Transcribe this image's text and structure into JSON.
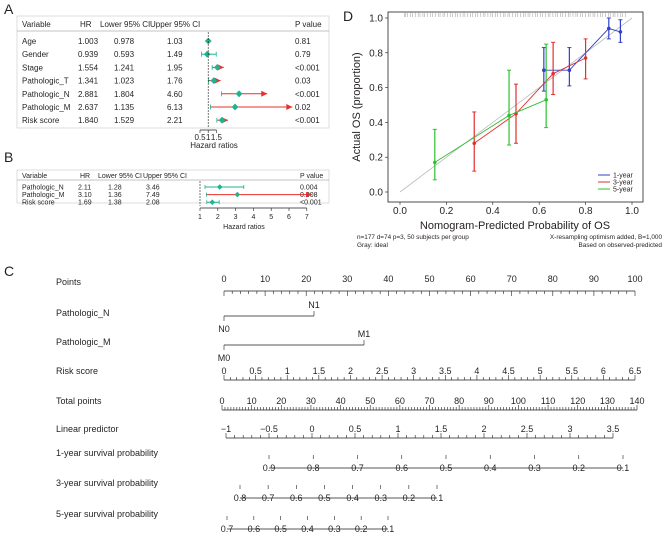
{
  "panelA": {
    "letter": "A",
    "headers": [
      "Variable",
      "HR",
      "Lower 95% CI",
      "Upper 95% CI",
      "P value"
    ],
    "rows": [
      {
        "variable": "Age",
        "hr": "1.003",
        "lower": "0.978",
        "upper": "1.03",
        "p": "0.81",
        "hrv": 1.003,
        "lo": 0.978,
        "up": 1.03,
        "arrow": false,
        "color": "#1fb38f"
      },
      {
        "variable": "Gender",
        "hr": "0.939",
        "lower": "0.593",
        "upper": "1.49",
        "p": "0.79",
        "hrv": 0.939,
        "lo": 0.593,
        "up": 1.49,
        "arrow": false,
        "color": "#1fb38f"
      },
      {
        "variable": "Stage",
        "hr": "1.554",
        "lower": "1.241",
        "upper": "1.95",
        "p": "<0.001",
        "hrv": 1.554,
        "lo": 1.241,
        "up": 1.95,
        "arrow": true,
        "color": "#1fb38f"
      },
      {
        "variable": "Pathologic_T",
        "hr": "1.341",
        "lower": "1.023",
        "upper": "1.76",
        "p": "0.03",
        "hrv": 1.341,
        "lo": 1.023,
        "up": 1.76,
        "arrow": true,
        "color": "#1fb38f"
      },
      {
        "variable": "Pathologic_N",
        "hr": "2.881",
        "lower": "1.804",
        "upper": "4.60",
        "p": "<0.001",
        "hrv": 2.881,
        "lo": 1.804,
        "up": 4.6,
        "arrow": true,
        "color": "#1fb38f"
      },
      {
        "variable": "Pathologic_M",
        "hr": "2.637",
        "lower": "1.135",
        "upper": "6.13",
        "p": "0.02",
        "hrv": 2.637,
        "lo": 1.135,
        "up": 6.13,
        "arrow": true,
        "color": "#1fb38f"
      },
      {
        "variable": "Risk score",
        "hr": "1.840",
        "lower": "1.529",
        "upper": "2.21",
        "p": "<0.001",
        "hrv": 1.84,
        "lo": 1.529,
        "up": 2.21,
        "arrow": true,
        "color": "#1fb38f"
      }
    ],
    "ticks": [
      "0.5",
      "1",
      "1.5"
    ],
    "xlabel": "Hazard ratios"
  },
  "panelB": {
    "letter": "B",
    "headers": [
      "Variable",
      "HR",
      "Lower 95% CI",
      "Upper 95% CI",
      "P value"
    ],
    "rows": [
      {
        "variable": "Pathologic_N",
        "hr": "2.11",
        "lower": "1.28",
        "upper": "3.46",
        "p": "0.004",
        "hrv": 2.11,
        "lo": 1.28,
        "up": 3.46,
        "arrow": false
      },
      {
        "variable": "Pathologic_M",
        "hr": "3.10",
        "lower": "1.36",
        "upper": "7.49",
        "p": "0.008",
        "hrv": 3.1,
        "lo": 1.36,
        "up": 7.49,
        "arrow": true
      },
      {
        "variable": "Risk score",
        "hr": "1.69",
        "lower": "1.38",
        "upper": "2.08",
        "p": "<0.001",
        "hrv": 1.69,
        "lo": 1.38,
        "up": 2.08,
        "arrow": false
      }
    ],
    "ticks": [
      "1",
      "2",
      "3",
      "4",
      "5",
      "6",
      "7"
    ],
    "xlabel": "Hazard ratios"
  },
  "panelC": {
    "letter": "C",
    "rows": [
      {
        "label": "Points",
        "ticks": [
          "0",
          "10",
          "20",
          "30",
          "40",
          "50",
          "60",
          "70",
          "80",
          "90",
          "100"
        ]
      },
      {
        "label": "Pathologic_N",
        "left": "N0",
        "right": "N1"
      },
      {
        "label": "Pathologic_M",
        "left": "M0",
        "right": "M1"
      },
      {
        "label": "Risk score",
        "ticks": [
          "0",
          "0.5",
          "1",
          "1.5",
          "2",
          "2.5",
          "3",
          "3.5",
          "4",
          "4.5",
          "5",
          "5.5",
          "6",
          "6.5"
        ]
      },
      {
        "label": "Total points",
        "ticks": [
          "0",
          "10",
          "20",
          "30",
          "40",
          "50",
          "60",
          "70",
          "80",
          "90",
          "100",
          "110",
          "120",
          "130",
          "140"
        ]
      },
      {
        "label": "Linear predictor",
        "ticks": [
          "−1",
          "−0.5",
          "0",
          "0.5",
          "1",
          "1.5",
          "2",
          "2.5",
          "3",
          "3.5"
        ]
      },
      {
        "label": "1-year survival probability",
        "ticks": [
          "0.9",
          "0.8",
          "0.7",
          "0.6",
          "0.5",
          "0.4",
          "0.3",
          "0.2",
          "0.1"
        ]
      },
      {
        "label": "3-year survival probability",
        "ticks": [
          "0.8",
          "0.7",
          "0.6",
          "0.5",
          "0.4",
          "0.3",
          "0.2",
          "0.1"
        ]
      },
      {
        "label": "5-year survival probability",
        "ticks": [
          "0.7",
          "0.6",
          "0.5",
          "0.4",
          "0.3",
          "0.2",
          "0.1"
        ]
      }
    ]
  },
  "chart_data": {
    "type": "line",
    "panel_letter": "D",
    "title": "",
    "xlabel": "Nomogram-Predicted Probability of OS",
    "ylabel": "Actual OS (proportion)",
    "xlim": [
      -0.05,
      1.05
    ],
    "ylim": [
      -0.05,
      1.05
    ],
    "xticks": [
      "0.0",
      "0.2",
      "0.4",
      "0.6",
      "0.8",
      "1.0"
    ],
    "yticks": [
      "0.0",
      "0.2",
      "0.4",
      "0.6",
      "0.8",
      "1.0"
    ],
    "legend_position": "bottom-right",
    "series": [
      {
        "name": "1-year",
        "color": "#3040c8",
        "points": [
          {
            "x": 0.62,
            "y": 0.7,
            "lo": 0.58,
            "hi": 0.83
          },
          {
            "x": 0.73,
            "y": 0.7,
            "lo": 0.61,
            "hi": 0.83
          },
          {
            "x": 0.9,
            "y": 0.94,
            "lo": 0.88,
            "hi": 1.0
          },
          {
            "x": 0.95,
            "y": 0.92,
            "lo": 0.86,
            "hi": 0.99
          }
        ]
      },
      {
        "name": "3-year",
        "color": "#e03030",
        "points": [
          {
            "x": 0.32,
            "y": 0.28,
            "lo": 0.12,
            "hi": 0.46
          },
          {
            "x": 0.5,
            "y": 0.45,
            "lo": 0.28,
            "hi": 0.62
          },
          {
            "x": 0.66,
            "y": 0.68,
            "lo": 0.56,
            "hi": 0.86
          },
          {
            "x": 0.8,
            "y": 0.77,
            "lo": 0.65,
            "hi": 0.88
          }
        ]
      },
      {
        "name": "5-year",
        "color": "#30c030",
        "points": [
          {
            "x": 0.15,
            "y": 0.17,
            "lo": 0.07,
            "hi": 0.36
          },
          {
            "x": 0.47,
            "y": 0.44,
            "lo": 0.27,
            "hi": 0.7
          },
          {
            "x": 0.63,
            "y": 0.53,
            "lo": 0.37,
            "hi": 0.85
          }
        ]
      }
    ],
    "notes": [
      "n=177 d=74 p=3, 50 subjects per group",
      "Gray: ideal",
      "X-resampling optimism added, B=1,000",
      "Based on observed-predicted"
    ]
  }
}
